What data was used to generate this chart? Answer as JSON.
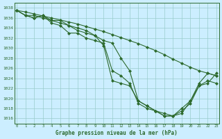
{
  "xlabel": "Graphe pression niveau de la mer (hPa)",
  "ylim": [
    1015,
    1039
  ],
  "xlim": [
    0,
    23
  ],
  "yticks": [
    1016,
    1018,
    1020,
    1022,
    1024,
    1026,
    1028,
    1030,
    1032,
    1034,
    1036,
    1038
  ],
  "xticks": [
    0,
    1,
    2,
    3,
    4,
    5,
    6,
    7,
    8,
    9,
    10,
    11,
    12,
    13,
    14,
    15,
    16,
    17,
    18,
    19,
    20,
    21,
    22,
    23
  ],
  "bg_color": "#cceeff",
  "grid_color": "#99cccc",
  "line_color": "#2d6a2d",
  "lines": [
    [
      1037.5,
      1036.5,
      1036.0,
      1036.5,
      1035.5,
      1035.0,
      1034.5,
      1034.0,
      1033.5,
      1032.5,
      1030.5,
      1023.5,
      1023.0,
      1022.5,
      1019.5,
      1018.5,
      1017.5,
      1017.0,
      1016.5,
      1018.0,
      1019.5,
      1023.0,
      1025.0,
      1024.5
    ],
    [
      1037.5,
      1036.5,
      1036.0,
      1036.5,
      1035.0,
      1034.5,
      1033.0,
      1033.0,
      1032.0,
      1031.5,
      1031.0,
      1025.5,
      1024.5,
      1023.0,
      1019.0,
      1018.0,
      1017.5,
      1016.5,
      1016.5,
      1017.0,
      1019.5,
      1022.5,
      1023.5,
      1023.0
    ],
    [
      1037.5,
      1036.5,
      1036.5,
      1036.0,
      1035.5,
      1035.5,
      1034.5,
      1033.5,
      1033.0,
      1032.5,
      1031.5,
      1031.0,
      1028.0,
      1025.5,
      1019.5,
      1018.5,
      1017.5,
      1016.5,
      1016.5,
      1017.5,
      1019.0,
      1022.5,
      1023.0,
      1025.0
    ],
    [
      1037.5,
      1037.2,
      1036.8,
      1036.4,
      1036.0,
      1035.6,
      1035.2,
      1034.8,
      1034.3,
      1033.8,
      1033.3,
      1032.7,
      1032.1,
      1031.5,
      1030.9,
      1030.2,
      1029.5,
      1028.7,
      1027.8,
      1027.0,
      1026.2,
      1025.5,
      1025.0,
      1024.5
    ]
  ]
}
